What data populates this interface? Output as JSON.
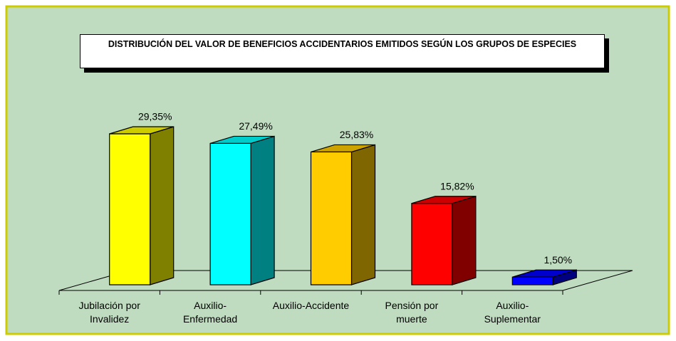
{
  "chart_data": {
    "type": "bar3d",
    "title": "DISTRIBUCIÓN DEL VALOR DE BENEFICIOS ACCIDENTARIOS EMITIDOS SEGÚN LOS GRUPOS DE ESPECIES",
    "categories": [
      "Jubilación por\nInvalidez",
      "Auxilio-\nEnfermedad",
      "Auxilio-Accidente",
      "Pensión por\nmuerte",
      "Auxilio-\nSuplementar"
    ],
    "values": [
      29.35,
      27.49,
      25.83,
      15.82,
      1.5
    ],
    "value_labels": [
      "29,35%",
      "27,49%",
      "25,83%",
      "15,82%",
      "1,50%"
    ],
    "colors": [
      "#ffff00",
      "#00ffff",
      "#ffcc00",
      "#ff0000",
      "#0000ff"
    ]
  }
}
